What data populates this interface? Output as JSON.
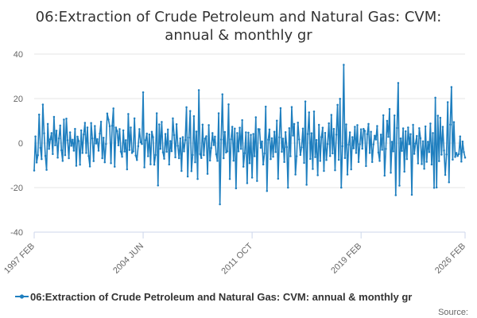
{
  "chart_data": {
    "type": "line",
    "title": "06:Extraction of Crude Petroleum and Natural Gas: CVM: annual & monthly gr",
    "title_lines": [
      "06:Extraction of Crude Petroleum and Natural Gas: CVM:",
      "annual & monthly gr"
    ],
    "xlabel": "",
    "ylabel": "",
    "ylim": [
      -40,
      40
    ],
    "y_ticks": [
      40,
      20,
      0,
      -20,
      -40
    ],
    "x_tick_labels": [
      "1997 FEB",
      "2004 JUN",
      "2011 OCT",
      "2019 FEB",
      "2026 FEB"
    ],
    "x_tick_index": [
      0,
      88,
      176,
      264,
      348
    ],
    "grid": true,
    "legend_position": "bottom-center",
    "source_text": "Source:",
    "series": [
      {
        "name": "06:Extraction of Crude Petroleum and Natural Gas: CVM: annual & monthly gr",
        "color": "#1f7fbf",
        "values": [
          -12.3,
          3.0,
          -8.7,
          -5.4,
          12.8,
          -2.1,
          -7.2,
          17.3,
          4.4,
          -5.7,
          -12.0,
          8.6,
          -2.6,
          1.7,
          4.5,
          -4.9,
          11.8,
          -1.0,
          5.6,
          -6.5,
          2.1,
          7.9,
          -3.2,
          -8.0,
          10.6,
          -5.4,
          11.0,
          1.3,
          -6.8,
          4.8,
          -1.2,
          1.5,
          -3.4,
          6.4,
          -10.2,
          2.9,
          0.9,
          -9.7,
          5.7,
          -4.4,
          3.9,
          9.1,
          -4.4,
          7.0,
          -5.8,
          -10.5,
          9.0,
          2.1,
          -8.1,
          7.7,
          -0.2,
          1.8,
          -3.4,
          4.3,
          9.6,
          -6.8,
          2.4,
          -8.6,
          -0.4,
          13.3,
          10.6,
          7.6,
          -9.0,
          7.8,
          15.6,
          -10.6,
          7.0,
          5.4,
          -1.0,
          6.3,
          -3.8,
          -6.1,
          5.7,
          -3.8,
          1.3,
          -11.8,
          13.1,
          -3.1,
          7.0,
          -4.4,
          -3.7,
          11.1,
          -5.6,
          -7.6,
          -1.4,
          6.3,
          0.4,
          -0.4,
          22.8,
          -10.9,
          1.3,
          4.3,
          -5.9,
          3.9,
          -9.5,
          5.1,
          2.7,
          -9.7,
          -5.3,
          13.4,
          -19.0,
          8.4,
          -2.6,
          9.5,
          -4.1,
          -7.0,
          4.1,
          -3.9,
          6.1,
          -9.6,
          0.9,
          -3.6,
          11.1,
          3.6,
          -6.4,
          8.5,
          -1.2,
          -6.8,
          2.1,
          -12.5,
          2.7,
          -3.7,
          1.4,
          16.1,
          -15.0,
          2.5,
          14.4,
          -12.6,
          -5.3,
          12.1,
          -8.6,
          5.2,
          -16.1,
          23.8,
          -4.9,
          -6.7,
          8.3,
          -5.4,
          2.0,
          3.1,
          -13.8,
          8.1,
          -7.8,
          -2.2,
          4.5,
          -0.9,
          2.9,
          -5.0,
          -8.0,
          13.4,
          -27.5,
          1.6,
          21.9,
          -6.8,
          5.0,
          -4.2,
          -3.7,
          17.4,
          -16.1,
          1.7,
          7.3,
          -7.9,
          6.5,
          -20.3,
          4.5,
          -3.7,
          6.9,
          -2.6,
          10.3,
          -10.6,
          -4.5,
          4.8,
          -18.0,
          4.7,
          -9.0,
          3.7,
          -15.5,
          4.1,
          -5.9,
          11.6,
          -17.0,
          6.3,
          6.2,
          -2.1,
          0.7,
          -9.6,
          -4.6,
          16.4,
          -21.5,
          1.5,
          6.1,
          -7.2,
          2.2,
          -6.1,
          5.1,
          -4.0,
          10.1,
          -16.0,
          2.6,
          15.7,
          -3.9,
          2.0,
          -8.5,
          4.9,
          -1.8,
          -20.0,
          6.7,
          -5.9,
          16.2,
          3.4,
          8.6,
          -14.1,
          -5.9,
          9.2,
          1.7,
          -5.3,
          -1.9,
          6.5,
          -8.9,
          18.7,
          -18.7,
          4.1,
          13.8,
          -7.1,
          4.4,
          -11.6,
          14.2,
          -6.3,
          1.4,
          -14.4,
          8.2,
          -8.0,
          2.7,
          6.9,
          -12.5,
          4.6,
          -7.6,
          -0.4,
          8.9,
          -5.8,
          12.7,
          -4.6,
          6.4,
          -12.2,
          3.8,
          17.2,
          -7.5,
          19.9,
          -20.0,
          -1.4,
          35.2,
          -6.7,
          8.4,
          -14.1,
          -0.7,
          4.8,
          -11.8,
          2.7,
          -2.3,
          7.3,
          -4.4,
          8.1,
          -8.5,
          -0.5,
          6.2,
          -2.5,
          6.4,
          5.5,
          -10.3,
          4.0,
          8.6,
          -4.4,
          5.1,
          -8.5,
          -0.6,
          3.3,
          1.6,
          7.7,
          -4.2,
          -8.0,
          3.8,
          -3.0,
          12.5,
          -14.6,
          -2.6,
          10.0,
          2.8,
          15.3,
          -13.3,
          0.6,
          -3.7,
          12.4,
          -23.4,
          6.8,
          27.0,
          -19.1,
          2.1,
          -3.5,
          6.6,
          -12.8,
          5.3,
          -7.2,
          7.0,
          -0.5,
          4.0,
          -23.2,
          8.2,
          -4.8,
          -0.2,
          3.2,
          -9.1,
          6.7,
          2.2,
          -9.4,
          0.8,
          -11.5,
          7.5,
          -8.4,
          0.6,
          -4.0,
          8.8,
          -9.6,
          4.5,
          -20.1,
          20.4,
          -19.9,
          12.3,
          -8.1,
          11.4,
          -5.2,
          7.3,
          -3.3,
          -14.3,
          -5.1,
          18.4,
          -17.6,
          8.3,
          25.2,
          -7.4,
          9.4,
          -6.2,
          -4.4,
          -5.8,
          -4.9,
          3.0,
          -8.3,
          0.7,
          -4.0,
          -6.5
        ]
      }
    ]
  }
}
